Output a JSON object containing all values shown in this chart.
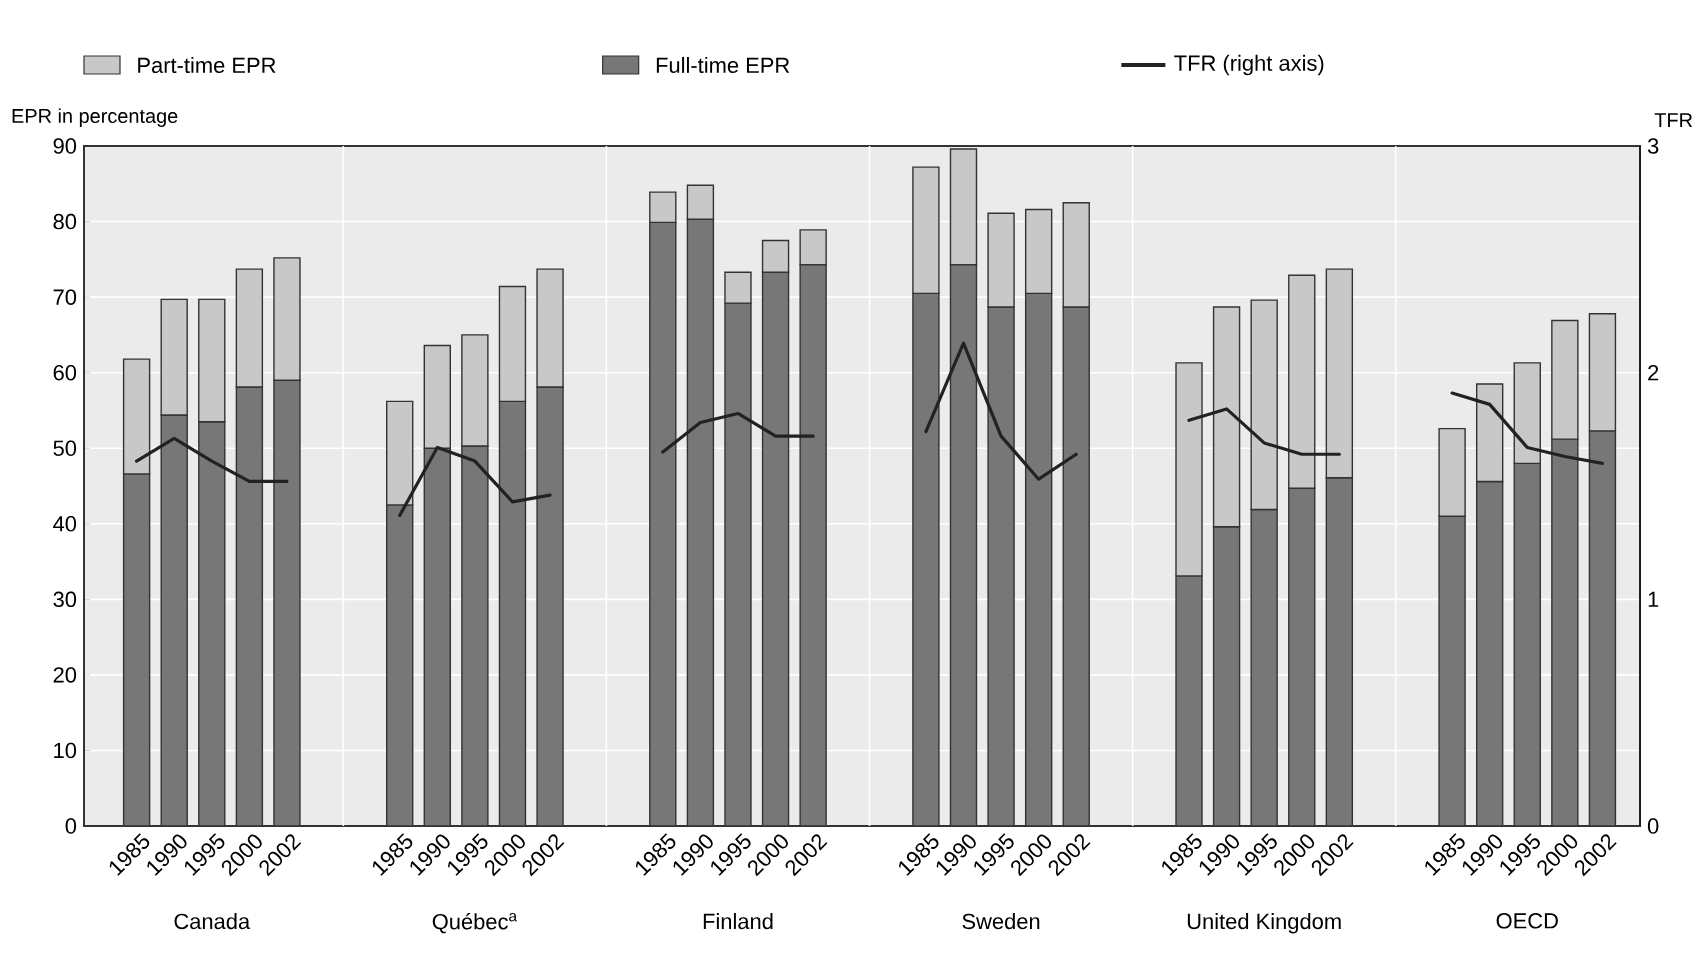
{
  "chart_data": {
    "type": "bar",
    "stacked": true,
    "ylabel": "EPR in percentage",
    "y2label": "TFR",
    "categories": [
      "1985",
      "1990",
      "1995",
      "2000",
      "2002",
      null,
      null,
      "1985",
      "1990",
      "1995",
      "2000",
      "2002",
      null,
      null,
      "1985",
      "1990",
      "1995",
      "2000",
      "2002",
      null,
      null,
      "1985",
      "1990",
      "1995",
      "2000",
      "2002",
      null,
      null,
      "1985",
      "1990",
      "1995",
      "2000",
      "2002",
      null,
      null,
      "1985",
      "1990",
      "1995",
      "2000",
      "2002"
    ],
    "series": [
      {
        "name": "Full-time EPR",
        "color": "#777777",
        "values": [
          46.6,
          54.4,
          53.5,
          58.1,
          59.0,
          null,
          null,
          42.5,
          50.0,
          50.3,
          56.2,
          58.1,
          null,
          null,
          79.9,
          80.3,
          69.2,
          73.3,
          74.3,
          null,
          null,
          70.5,
          74.3,
          68.7,
          70.5,
          68.7,
          null,
          null,
          33.1,
          39.6,
          41.9,
          44.7,
          46.1,
          null,
          null,
          41.0,
          45.6,
          48.0,
          51.2,
          52.3
        ]
      },
      {
        "name": "Part-time EPR",
        "color": "#c8c8c8",
        "values": [
          15.2,
          15.3,
          16.2,
          15.6,
          16.2,
          null,
          null,
          13.7,
          13.6,
          14.7,
          15.2,
          15.6,
          null,
          null,
          4.0,
          4.5,
          4.1,
          4.2,
          4.6,
          null,
          null,
          16.7,
          15.3,
          12.4,
          11.1,
          13.8,
          null,
          null,
          28.2,
          29.1,
          27.7,
          28.2,
          27.6,
          null,
          null,
          11.6,
          12.9,
          13.3,
          15.7,
          15.5
        ]
      },
      {
        "name": "TFR (right axis)",
        "color": "#222222",
        "type": "line",
        "axis": "y2",
        "values": [
          1.61,
          1.71,
          1.61,
          1.52,
          1.52,
          null,
          null,
          1.37,
          1.67,
          1.61,
          1.43,
          1.46,
          null,
          null,
          1.65,
          1.78,
          1.82,
          1.72,
          1.72,
          null,
          null,
          1.74,
          2.13,
          1.72,
          1.53,
          1.64,
          null,
          null,
          1.79,
          1.84,
          1.69,
          1.64,
          1.64,
          null,
          null,
          1.91,
          1.86,
          1.67,
          1.63,
          1.6
        ]
      }
    ],
    "annotations": [
      "Canada",
      "Québec$^{a}$",
      "Finland",
      "Sweden",
      "United Kingdom",
      "OECD"
    ],
    "ylim": [
      0,
      90
    ],
    "yticks": [
      0,
      10,
      20,
      30,
      40,
      50,
      60,
      70,
      80,
      90
    ],
    "y2lim": [
      0,
      3
    ],
    "y2ticks": [
      0,
      1,
      2,
      3
    ],
    "grid": "y",
    "legend": "top",
    "marker": "none",
    "line_style": "solid"
  }
}
